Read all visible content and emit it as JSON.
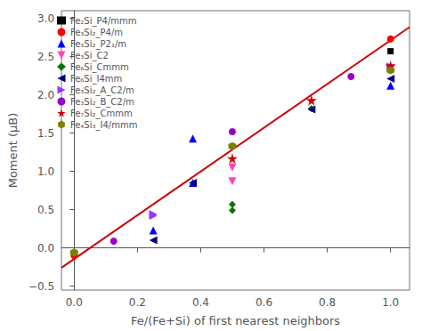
{
  "chart_data": {
    "type": "scatter",
    "title": "",
    "xlabel": "Fe/(Fe+Si) of first nearest neighbors",
    "ylabel": "Moment (μB)",
    "xlim": [
      -0.04,
      1.06
    ],
    "ylim": [
      -0.55,
      3.1
    ],
    "xticks": [
      {
        "value": 0.0,
        "label": "0.0"
      },
      {
        "value": 0.2,
        "label": "0.2"
      },
      {
        "value": 0.4,
        "label": "0.4"
      },
      {
        "value": 0.6,
        "label": "0.6"
      },
      {
        "value": 0.8,
        "label": "0.8"
      },
      {
        "value": 1.0,
        "label": "1.0"
      }
    ],
    "yticks": [
      {
        "value": -0.5,
        "label": "−0.5"
      },
      {
        "value": 0.0,
        "label": "0.0"
      },
      {
        "value": 0.5,
        "label": "0.5"
      },
      {
        "value": 1.0,
        "label": "1.0"
      },
      {
        "value": 1.5,
        "label": "1.5"
      },
      {
        "value": 2.0,
        "label": "2.0"
      },
      {
        "value": 2.5,
        "label": "2.5"
      },
      {
        "value": 3.0,
        "label": "3.0"
      }
    ],
    "grid": false,
    "legend": "upper left",
    "series": [
      {
        "type": "line",
        "color": "#cc0000",
        "x": [
          -0.04,
          1.06
        ],
        "values": [
          -0.25728,
          2.88542
        ]
      },
      {
        "name": "Fe₂Si_P4/mmm",
        "color": "#000000",
        "marker": "square",
        "x": [
          1.0
        ],
        "values": [
          2.57
        ]
      },
      {
        "name": "Fe₃Si₂_P4/m",
        "color": "#ff0000",
        "marker": "circle",
        "x": [
          0.0,
          1.0
        ],
        "values": [
          -0.1,
          2.73
        ]
      },
      {
        "name": "Fe₃Si₂_P2₁/m",
        "color": "#0000ff",
        "marker": "triangle-up",
        "x": [
          0.25,
          0.375,
          0.375,
          1.0
        ],
        "values": [
          0.23,
          0.85,
          1.43,
          2.12
        ]
      },
      {
        "name": "Fe₃Si_C2",
        "color": "#ff44bb",
        "marker": "triangle-down",
        "x": [
          0.5,
          0.5,
          1.0
        ],
        "values": [
          1.05,
          0.87,
          2.35
        ]
      },
      {
        "name": "Fe₆Si_Cmmm",
        "color": "#007700",
        "marker": "diamond",
        "x": [
          0.5,
          0.5,
          0.75,
          1.0
        ],
        "values": [
          0.57,
          0.49,
          1.82,
          2.32
        ]
      },
      {
        "name": "Fe₆Si_I4mm",
        "color": "#000080",
        "marker": "triangle-left",
        "x": [
          0.25,
          0.375,
          0.75,
          1.0
        ],
        "values": [
          0.1,
          0.85,
          1.81,
          2.21
        ]
      },
      {
        "name": "Fe₃Si₂_A_C2/m",
        "color": "#9933ff",
        "marker": "triangle-right",
        "x": [
          0.25,
          0.25,
          1.0
        ],
        "values": [
          0.44,
          0.42,
          2.37
        ]
      },
      {
        "name": "Fe₃Si₂_B_C2/m",
        "color": "#9900cc",
        "marker": "circle",
        "x": [
          0.125,
          0.5,
          0.875
        ],
        "values": [
          0.09,
          1.52,
          2.24
        ]
      },
      {
        "name": "Fe₇Si₂_Cmmm",
        "color": "#cc0000",
        "marker": "star",
        "x": [
          0.5,
          0.75,
          1.0
        ],
        "values": [
          1.17,
          1.93,
          2.38
        ]
      },
      {
        "name": "Fe₄Si₃_I4/mmm",
        "color": "#808000",
        "marker": "hexagon",
        "x": [
          0.0,
          0.5,
          1.0
        ],
        "values": [
          -0.06,
          1.33,
          2.32
        ]
      }
    ]
  }
}
